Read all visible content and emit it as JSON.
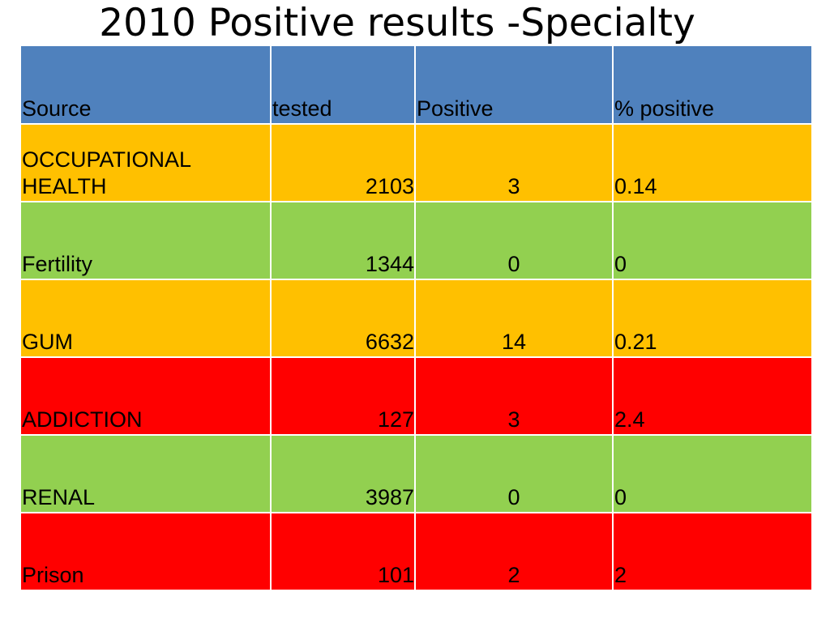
{
  "title": "2010 Positive results -Specialty",
  "table": {
    "headers": [
      "Source",
      "tested",
      "Positive",
      "% positive"
    ],
    "rows": [
      {
        "source": "OCCUPATIONAL HEALTH",
        "tested": "2103",
        "positive": "3",
        "percent": "0.14",
        "color": "#ffc000"
      },
      {
        "source": "Fertility",
        "tested": "1344",
        "positive": "0",
        "percent": "0",
        "color": "#92d050"
      },
      {
        "source": "GUM",
        "tested": "6632",
        "positive": "14",
        "percent": "0.21",
        "color": "#ffc000"
      },
      {
        "source": "ADDICTION",
        "tested": "127",
        "positive": "3",
        "percent": "2.4",
        "color": "#ff0000"
      },
      {
        "source": "RENAL",
        "tested": "3987",
        "positive": "0",
        "percent": "0",
        "color": "#92d050"
      },
      {
        "source": "Prison",
        "tested": "101",
        "positive": "2",
        "percent": "2",
        "color": "#ff0000"
      }
    ]
  },
  "colors": {
    "header": "#4f81bd",
    "orange": "#ffc000",
    "green": "#92d050",
    "red": "#ff0000"
  }
}
